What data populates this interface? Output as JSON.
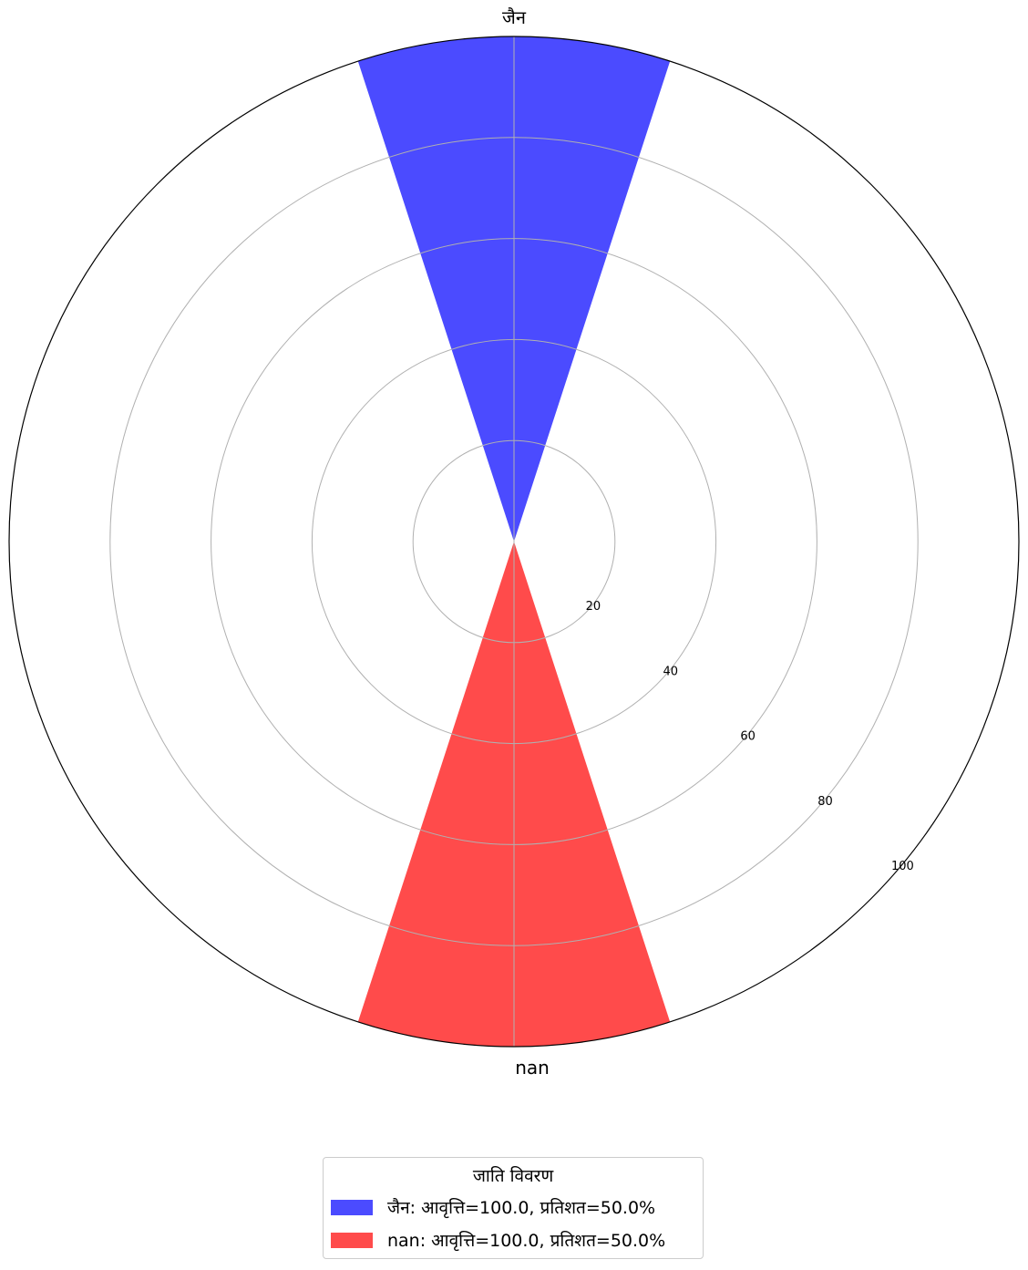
{
  "chart_data": {
    "type": "polar-bar",
    "categories": [
      "जैन",
      "nan"
    ],
    "values": [
      100.0,
      100.0
    ],
    "colors": [
      "#4b4bff",
      "#ff4b4b"
    ],
    "r_ticks": [
      "20",
      "40",
      "60",
      "80",
      "100"
    ],
    "r_tick_values": [
      20,
      40,
      60,
      80,
      100
    ],
    "rlim": [
      0,
      100
    ],
    "grid": true,
    "legend": {
      "title": "जाति विवरण",
      "placement": "bottom-center",
      "entries": [
        "जैन: आवृत्ति=100.0, प्रतिशत=50.0%",
        "nan: आवृत्ति=100.0, प्रतिशत=50.0%"
      ]
    }
  }
}
